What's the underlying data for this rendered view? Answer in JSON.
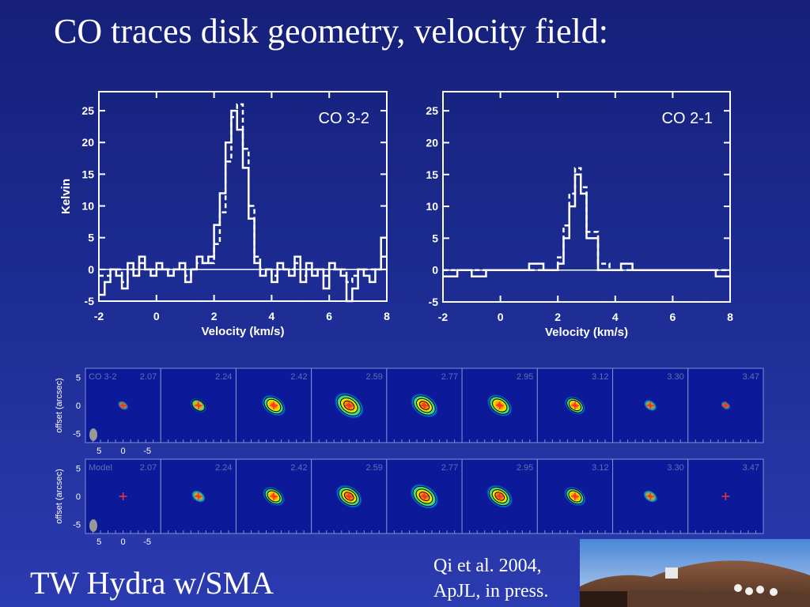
{
  "slide": {
    "title": "CO traces disk geometry, velocity field:",
    "footer_title": "TW Hydra w/SMA",
    "citation_line1": "Qi et al. 2004,",
    "citation_line2": "ApJL, in press."
  },
  "colors": {
    "background_top": "#16207a",
    "background_bottom": "#2b3bb0",
    "plot_line": "#ffffff",
    "marker": "#ff3030"
  },
  "chart_data": [
    {
      "type": "line",
      "panel_label": "CO 3-2",
      "xlabel": "Velocity (km/s)",
      "ylabel": "Kelvin",
      "xlim": [
        -2,
        8
      ],
      "ylim": [
        -5,
        28
      ],
      "xticks": [
        -2,
        0,
        2,
        4,
        6,
        8
      ],
      "yticks": [
        -5,
        0,
        5,
        10,
        15,
        20,
        25
      ],
      "step": true,
      "series": [
        {
          "style": "solid",
          "x": [
            -2.0,
            -1.8,
            -1.6,
            -1.4,
            -1.2,
            -1.0,
            -0.8,
            -0.6,
            -0.4,
            -0.2,
            0.0,
            0.2,
            0.4,
            0.6,
            0.8,
            1.0,
            1.2,
            1.4,
            1.6,
            1.8,
            2.0,
            2.2,
            2.4,
            2.6,
            2.8,
            3.0,
            3.2,
            3.4,
            3.6,
            3.8,
            4.0,
            4.2,
            4.4,
            4.6,
            4.8,
            5.0,
            5.2,
            5.4,
            5.6,
            5.8,
            6.0,
            6.2,
            6.4,
            6.6,
            6.8,
            7.0,
            7.2,
            7.4,
            7.6,
            7.8
          ],
          "y": [
            -4,
            -2,
            0,
            -1,
            -3,
            1,
            -1,
            2,
            0,
            -1,
            1,
            0,
            -1,
            0,
            1,
            -2,
            0,
            2,
            1,
            2,
            7,
            12,
            20,
            25,
            22,
            16,
            8,
            1,
            -1,
            0,
            -2,
            1,
            0,
            -1,
            2,
            -2,
            1,
            -1,
            0,
            -3,
            1,
            0,
            -1,
            -5,
            -3,
            0,
            -1,
            -2,
            0,
            5
          ]
        },
        {
          "style": "dashed",
          "x": [
            -2.0,
            -1.8,
            -1.6,
            -1.4,
            -1.2,
            -1.0,
            -0.8,
            -0.6,
            -0.4,
            -0.2,
            0.0,
            0.2,
            0.4,
            0.6,
            0.8,
            1.0,
            1.2,
            1.4,
            1.6,
            1.8,
            2.0,
            2.2,
            2.4,
            2.6,
            2.8,
            3.0,
            3.2,
            3.4,
            3.6,
            3.8,
            4.0,
            4.2,
            4.4,
            4.6,
            4.8,
            5.0,
            5.2,
            5.4,
            5.6,
            5.8,
            6.0,
            6.2,
            6.4,
            6.6,
            6.8,
            7.0,
            7.2,
            7.4,
            7.6,
            7.8
          ],
          "y": [
            -1,
            -1,
            0,
            0,
            -2,
            0,
            0,
            1,
            0,
            0,
            0,
            0,
            0,
            0,
            0,
            -1,
            0,
            1,
            1,
            1,
            4,
            9,
            17,
            24,
            26,
            19,
            10,
            2,
            0,
            0,
            -1,
            0,
            0,
            0,
            1,
            -1,
            0,
            0,
            0,
            -1,
            0,
            0,
            0,
            -2,
            -1,
            0,
            0,
            0,
            0,
            2
          ]
        }
      ]
    },
    {
      "type": "line",
      "panel_label": "CO 2-1",
      "xlabel": "Velocity (km/s)",
      "ylabel": "",
      "xlim": [
        -2,
        8
      ],
      "ylim": [
        -5,
        28
      ],
      "xticks": [
        -2,
        0,
        2,
        4,
        6,
        8
      ],
      "yticks": [
        -5,
        0,
        5,
        10,
        15,
        20,
        25
      ],
      "step": true,
      "series": [
        {
          "style": "solid",
          "x": [
            -2.0,
            -1.5,
            -1.0,
            -0.5,
            0.0,
            0.5,
            1.0,
            1.5,
            2.0,
            2.2,
            2.4,
            2.6,
            2.8,
            3.0,
            3.4,
            3.8,
            4.2,
            4.6,
            5.0,
            5.5,
            6.0,
            6.5,
            7.0,
            7.5
          ],
          "y": [
            -1,
            0,
            -1,
            0,
            0,
            0,
            1,
            0,
            1,
            5,
            10,
            15,
            12,
            5,
            0,
            0,
            1,
            0,
            0,
            0,
            0,
            0,
            0,
            -1
          ]
        },
        {
          "style": "dashed",
          "x": [
            -2.0,
            -1.5,
            -1.0,
            -0.5,
            0.0,
            0.5,
            1.0,
            1.5,
            2.0,
            2.2,
            2.4,
            2.6,
            2.8,
            3.0,
            3.4,
            3.8,
            4.2,
            4.6,
            5.0,
            5.5,
            6.0,
            6.5,
            7.0,
            7.5
          ],
          "y": [
            0,
            0,
            0,
            0,
            0,
            0,
            0,
            0,
            2,
            7,
            12,
            16,
            13,
            6,
            1,
            0,
            0,
            0,
            0,
            0,
            0,
            0,
            0,
            0
          ]
        }
      ]
    },
    {
      "type": "heatmap",
      "panel_label": "CO 3-2",
      "ylabel": "offset (arcsec)",
      "yticks": [
        5,
        0,
        -5
      ],
      "xticks": [
        5,
        0,
        -5
      ],
      "channel_labels": [
        "2.07",
        "2.24",
        "2.42",
        "2.59",
        "2.77",
        "2.95",
        "3.12",
        "3.30",
        "3.47"
      ],
      "intensity": [
        0.1,
        0.35,
        0.7,
        0.95,
        0.85,
        0.75,
        0.55,
        0.2,
        0.05
      ]
    },
    {
      "type": "heatmap",
      "panel_label": "Model",
      "ylabel": "offset (arcsec)",
      "yticks": [
        5,
        0,
        -5
      ],
      "xticks": [
        5,
        0,
        -5
      ],
      "channel_labels": [
        "2.07",
        "2.24",
        "2.42",
        "2.59",
        "2.77",
        "2.95",
        "3.12",
        "3.30",
        "3.47"
      ],
      "intensity": [
        0.0,
        0.25,
        0.6,
        0.8,
        0.9,
        0.8,
        0.6,
        0.25,
        0.0
      ]
    }
  ]
}
